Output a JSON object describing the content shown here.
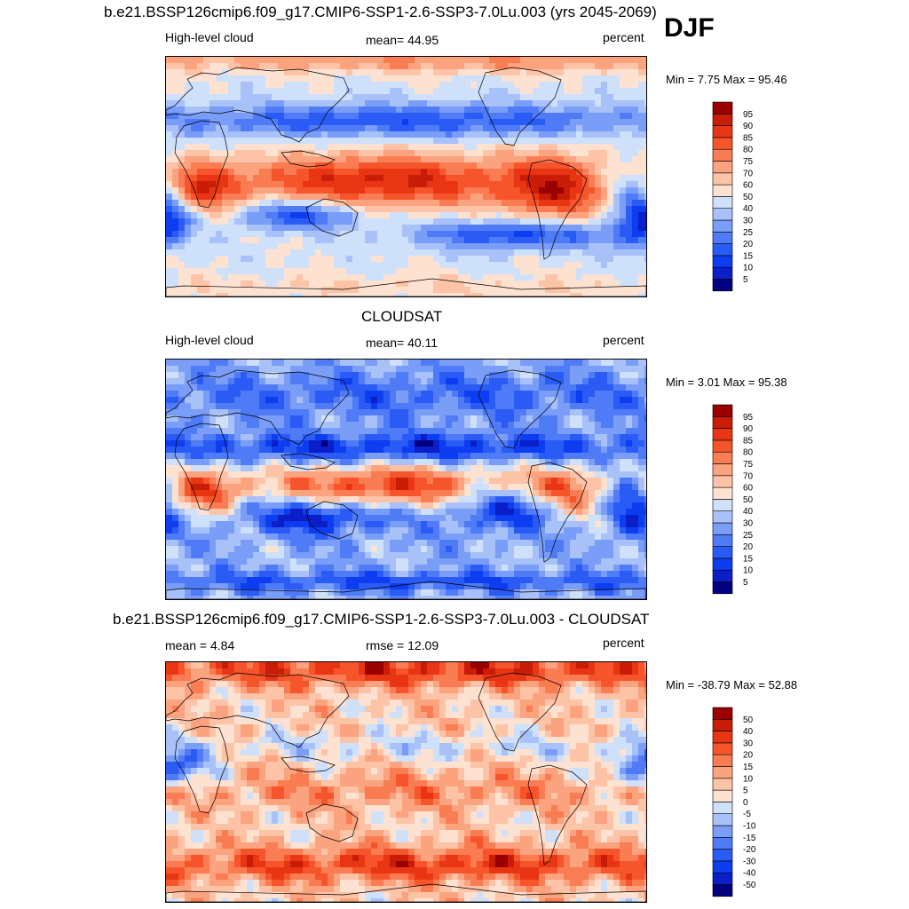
{
  "season_label": "DJF",
  "palette_abs": [
    "#010080",
    "#0a1fc8",
    "#0d3df0",
    "#2b5bf5",
    "#4f7cf6",
    "#7a9df7",
    "#a8c1f8",
    "#cfe0fa",
    "#fde2d2",
    "#fcc3a6",
    "#fba27f",
    "#f97c52",
    "#f6552b",
    "#e83615",
    "#c91d07",
    "#9a0000"
  ],
  "palette_diff": [
    "#010080",
    "#0a1fc8",
    "#0d3df0",
    "#2b5bf5",
    "#4f7cf6",
    "#7a9df7",
    "#a8c1f8",
    "#cfe0fa",
    "#fde2d2",
    "#fcc3a6",
    "#fba27f",
    "#f97c52",
    "#f6552b",
    "#e83615",
    "#c91d07",
    "#9a0000"
  ],
  "panels": [
    {
      "title": "b.e21.BSSP126cmip6.f09_g17.CMIP6-SSP1-2.6-SSP3-7.0Lu.003 (yrs 2045-2069)",
      "left_label": "High-level cloud",
      "center_label": "mean=  44.95",
      "units": "percent",
      "minmax": "Min =   7.75 Max =  95.46",
      "colorbar_levels": [
        "5",
        "10",
        "15",
        "20",
        "25",
        "30",
        "40",
        "50",
        "60",
        "70",
        "75",
        "80",
        "85",
        "90",
        "95"
      ]
    },
    {
      "title": "CLOUDSAT",
      "left_label": "High-level cloud",
      "center_label": "mean=  40.11",
      "units": "percent",
      "minmax": "Min =   3.01 Max =  95.38",
      "colorbar_levels": [
        "5",
        "10",
        "15",
        "20",
        "25",
        "30",
        "40",
        "50",
        "60",
        "70",
        "75",
        "80",
        "85",
        "90",
        "95"
      ]
    },
    {
      "title": "b.e21.BSSP126cmip6.f09_g17.CMIP6-SSP1-2.6-SSP3-7.0Lu.003 - CLOUDSAT",
      "left_label": "mean =   4.84",
      "center_label": "rmse =  12.09",
      "units": "percent",
      "minmax": "Min = -38.79 Max =  52.88",
      "colorbar_levels": [
        "-50",
        "-40",
        "-30",
        "-20",
        "-15",
        "-10",
        "-5",
        "0",
        "5",
        "10",
        "15",
        "20",
        "30",
        "40",
        "50"
      ]
    }
  ]
}
